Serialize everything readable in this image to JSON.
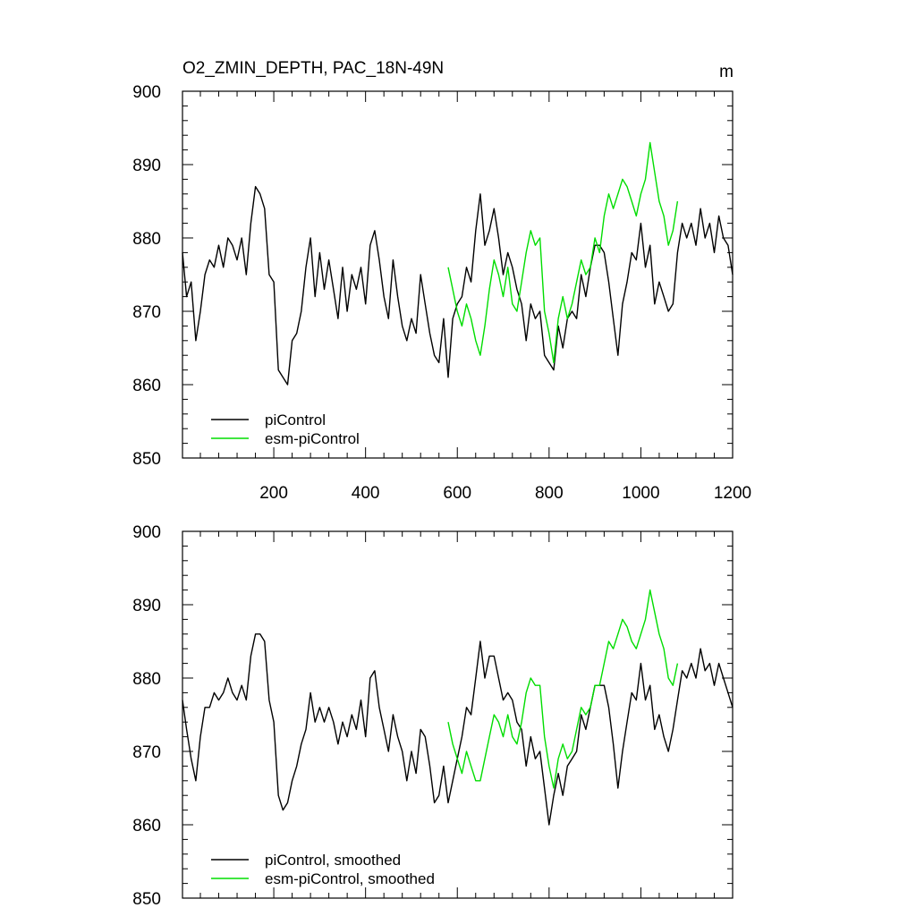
{
  "chart_data": [
    {
      "type": "line",
      "title": "O2_ZMIN_DEPTH, PAC_18N-49N",
      "units": "m",
      "xlim": [
        1,
        1200
      ],
      "ylim": [
        850,
        900
      ],
      "xticks": [
        200,
        400,
        600,
        800,
        1000,
        1200
      ],
      "xtick_labels": [
        "200",
        "400",
        "600",
        "800",
        "1000",
        "1200"
      ],
      "yticks": [
        850,
        860,
        870,
        880,
        890,
        900
      ],
      "ytick_labels": [
        "850",
        "860",
        "870",
        "880",
        "890",
        "900"
      ],
      "legend_position": "bottom-left",
      "series": [
        {
          "name": "piControl",
          "color": "#000000",
          "x": [
            1,
            10,
            20,
            30,
            40,
            50,
            60,
            70,
            80,
            90,
            100,
            110,
            120,
            130,
            140,
            150,
            160,
            170,
            180,
            190,
            200,
            210,
            220,
            230,
            240,
            250,
            260,
            270,
            280,
            290,
            300,
            310,
            320,
            330,
            340,
            350,
            360,
            370,
            380,
            390,
            400,
            410,
            420,
            430,
            440,
            450,
            460,
            470,
            480,
            490,
            500,
            510,
            520,
            530,
            540,
            550,
            560,
            570,
            580,
            590,
            600,
            610,
            620,
            630,
            640,
            650,
            660,
            670,
            680,
            690,
            700,
            710,
            720,
            730,
            740,
            750,
            760,
            770,
            780,
            790,
            800,
            810,
            820,
            830,
            840,
            850,
            860,
            870,
            880,
            890,
            900,
            910,
            920,
            930,
            940,
            950,
            960,
            970,
            980,
            990,
            1000,
            1010,
            1020,
            1030,
            1040,
            1050,
            1060,
            1070,
            1080,
            1090,
            1100,
            1110,
            1120,
            1130,
            1140,
            1150,
            1160,
            1170,
            1180,
            1190,
            1200
          ],
          "values": [
            878,
            872,
            874,
            866,
            870,
            875,
            877,
            876,
            879,
            876,
            880,
            879,
            877,
            880,
            875,
            882,
            887,
            886,
            884,
            875,
            874,
            862,
            861,
            860,
            866,
            867,
            870,
            876,
            880,
            872,
            878,
            873,
            877,
            873,
            869,
            876,
            870,
            875,
            873,
            876,
            871,
            879,
            881,
            877,
            872,
            869,
            877,
            872,
            868,
            866,
            869,
            867,
            875,
            871,
            867,
            864,
            863,
            869,
            861,
            869,
            871,
            872,
            876,
            874,
            881,
            886,
            879,
            881,
            884,
            880,
            875,
            878,
            876,
            873,
            871,
            866,
            871,
            869,
            870,
            864,
            863,
            862,
            868,
            865,
            869,
            870,
            869,
            875,
            872,
            876,
            879,
            879,
            878,
            874,
            869,
            864,
            871,
            874,
            878,
            877,
            882,
            876,
            879,
            871,
            874,
            872,
            870,
            871,
            878,
            882,
            880,
            882,
            879,
            884,
            880,
            882,
            878,
            883,
            880,
            879,
            875
          ]
        },
        {
          "name": "esm-piControl",
          "color": "#00dd00",
          "x": [
            580,
            590,
            600,
            610,
            620,
            630,
            640,
            650,
            660,
            670,
            680,
            690,
            700,
            710,
            720,
            730,
            740,
            750,
            760,
            770,
            780,
            790,
            800,
            810,
            820,
            830,
            840,
            850,
            860,
            870,
            880,
            890,
            900,
            910,
            920,
            930,
            940,
            950,
            960,
            970,
            980,
            990,
            1000,
            1010,
            1020,
            1030,
            1040,
            1050,
            1060,
            1070,
            1080
          ],
          "values": [
            876,
            873,
            870,
            868,
            871,
            869,
            866,
            864,
            868,
            873,
            877,
            875,
            872,
            876,
            871,
            870,
            874,
            878,
            881,
            879,
            880,
            870,
            867,
            863,
            869,
            872,
            869,
            871,
            874,
            877,
            875,
            876,
            880,
            878,
            883,
            886,
            884,
            886,
            888,
            887,
            885,
            883,
            886,
            888,
            893,
            889,
            885,
            883,
            879,
            881,
            885
          ]
        }
      ]
    },
    {
      "type": "line",
      "title": "",
      "xlim": [
        1,
        1200
      ],
      "ylim": [
        850,
        900
      ],
      "xticks": [
        200,
        400,
        600,
        800,
        1000,
        1200
      ],
      "yticks": [
        850,
        860,
        870,
        880,
        890,
        900
      ],
      "ytick_labels": [
        "850",
        "860",
        "870",
        "880",
        "890",
        "900"
      ],
      "legend_position": "bottom-left",
      "series": [
        {
          "name": "piControl, smoothed",
          "color": "#000000",
          "x": [
            1,
            10,
            20,
            30,
            40,
            50,
            60,
            70,
            80,
            90,
            100,
            110,
            120,
            130,
            140,
            150,
            160,
            170,
            180,
            190,
            200,
            210,
            220,
            230,
            240,
            250,
            260,
            270,
            280,
            290,
            300,
            310,
            320,
            330,
            340,
            350,
            360,
            370,
            380,
            390,
            400,
            410,
            420,
            430,
            440,
            450,
            460,
            470,
            480,
            490,
            500,
            510,
            520,
            530,
            540,
            550,
            560,
            570,
            580,
            590,
            600,
            610,
            620,
            630,
            640,
            650,
            660,
            670,
            680,
            690,
            700,
            710,
            720,
            730,
            740,
            750,
            760,
            770,
            780,
            790,
            800,
            810,
            820,
            830,
            840,
            850,
            860,
            870,
            880,
            890,
            900,
            910,
            920,
            930,
            940,
            950,
            960,
            970,
            980,
            990,
            1000,
            1010,
            1020,
            1030,
            1040,
            1050,
            1060,
            1070,
            1080,
            1090,
            1100,
            1110,
            1120,
            1130,
            1140,
            1150,
            1160,
            1170,
            1180,
            1190,
            1200
          ],
          "values": [
            877,
            873,
            869,
            866,
            872,
            876,
            876,
            878,
            877,
            878,
            880,
            878,
            877,
            879,
            877,
            883,
            886,
            886,
            885,
            877,
            874,
            864,
            862,
            863,
            866,
            868,
            871,
            873,
            878,
            874,
            876,
            874,
            876,
            874,
            871,
            874,
            872,
            875,
            873,
            877,
            872,
            880,
            881,
            876,
            873,
            870,
            875,
            872,
            870,
            866,
            870,
            867,
            873,
            872,
            868,
            863,
            864,
            868,
            863,
            866,
            869,
            872,
            876,
            875,
            880,
            885,
            880,
            883,
            883,
            880,
            877,
            878,
            877,
            874,
            873,
            868,
            872,
            869,
            870,
            865,
            860,
            864,
            867,
            864,
            868,
            869,
            870,
            875,
            873,
            876,
            879,
            879,
            879,
            876,
            871,
            865,
            870,
            874,
            878,
            877,
            882,
            877,
            879,
            873,
            875,
            872,
            870,
            873,
            877,
            881,
            880,
            882,
            880,
            884,
            881,
            882,
            879,
            882,
            880,
            878,
            876
          ]
        },
        {
          "name": "esm-piControl, smoothed",
          "color": "#00dd00",
          "x": [
            580,
            590,
            600,
            610,
            620,
            630,
            640,
            650,
            660,
            670,
            680,
            690,
            700,
            710,
            720,
            730,
            740,
            750,
            760,
            770,
            780,
            790,
            800,
            810,
            820,
            830,
            840,
            850,
            860,
            870,
            880,
            890,
            900,
            910,
            920,
            930,
            940,
            950,
            960,
            970,
            980,
            990,
            1000,
            1010,
            1020,
            1030,
            1040,
            1050,
            1060,
            1070,
            1080
          ],
          "values": [
            874,
            871,
            869,
            867,
            870,
            868,
            866,
            866,
            869,
            872,
            875,
            874,
            872,
            875,
            872,
            871,
            874,
            878,
            880,
            879,
            879,
            872,
            868,
            865,
            869,
            871,
            869,
            870,
            873,
            876,
            875,
            876,
            879,
            879,
            882,
            885,
            884,
            886,
            888,
            887,
            885,
            884,
            886,
            888,
            892,
            889,
            886,
            884,
            880,
            879,
            882
          ]
        }
      ]
    }
  ]
}
